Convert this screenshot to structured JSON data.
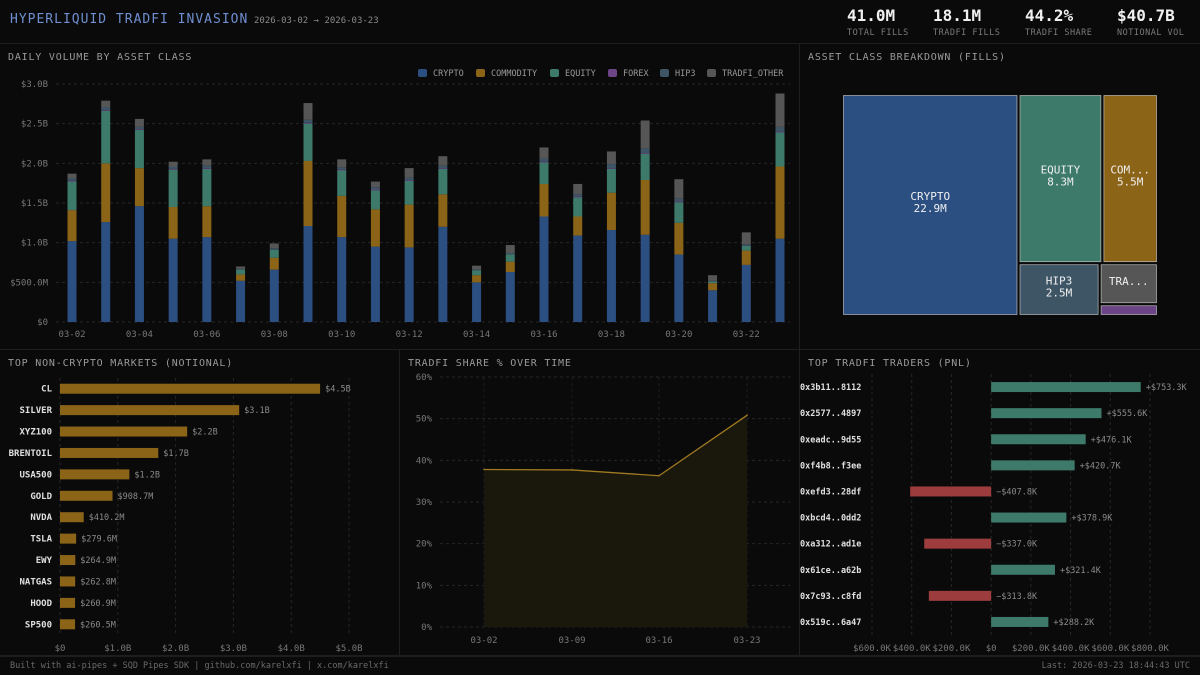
{
  "header": {
    "title": "HYPERLIQUID TRADFI INVASION",
    "date_range": "2026-03-02 → 2026-03-23",
    "stats": [
      {
        "value": "41.0M",
        "label": "TOTAL FILLS"
      },
      {
        "value": "18.1M",
        "label": "TRADFI FILLS"
      },
      {
        "value": "44.2%",
        "label": "TRADFI SHARE"
      },
      {
        "value": "$40.7B",
        "label": "NOTIONAL VOL"
      }
    ]
  },
  "panels": {
    "daily_volume": "DAILY VOLUME BY ASSET CLASS",
    "breakdown": "ASSET CLASS BREAKDOWN (FILLS)",
    "top_markets": "TOP NON-CRYPTO MARKETS (NOTIONAL)",
    "tradfi_share": "TRADFI SHARE % OVER TIME",
    "top_traders": "TOP TRADFI TRADERS (PNL)"
  },
  "footer": {
    "left": "Built with ai-pipes + SQD Pipes SDK | github.com/karelxfi | x.com/karelxfi",
    "right": "Last: 2026-03-23 18:44:43 UTC"
  },
  "colors": {
    "CRYPTO": "#2c4f82",
    "COMMODITY": "#8c6418",
    "EQUITY": "#3d7a6a",
    "FOREX": "#6b4585",
    "HIP3": "#3e5566",
    "TRADFI_OTHER": "#565656"
  },
  "chart_data": [
    {
      "id": "daily_volume",
      "type": "bar",
      "stacked": true,
      "title": "DAILY VOLUME BY ASSET CLASS",
      "categories": [
        "03-02",
        "03-03",
        "03-04",
        "03-05",
        "03-06",
        "03-07",
        "03-08",
        "03-09",
        "03-10",
        "03-11",
        "03-12",
        "03-13",
        "03-14",
        "03-15",
        "03-16",
        "03-17",
        "03-18",
        "03-19",
        "03-20",
        "03-21",
        "03-22",
        "03-23"
      ],
      "tick_labels": [
        "03-02",
        "03-04",
        "03-06",
        "03-08",
        "03-10",
        "03-12",
        "03-14",
        "03-16",
        "03-18",
        "03-20",
        "03-22"
      ],
      "y_ticks": [
        "$0",
        "$500.0M",
        "$1.0B",
        "$1.5B",
        "$2.0B",
        "$2.5B",
        "$3.0B"
      ],
      "ylim": [
        0,
        3.0
      ],
      "y_unit": "B",
      "grid": true,
      "legend_position": "top-right",
      "series": [
        {
          "name": "CRYPTO",
          "values": [
            1.02,
            1.26,
            1.46,
            1.05,
            1.07,
            0.52,
            0.66,
            1.21,
            1.07,
            0.95,
            0.94,
            1.2,
            0.5,
            0.63,
            1.33,
            1.09,
            1.16,
            1.1,
            0.85,
            0.4,
            0.72,
            1.05
          ]
        },
        {
          "name": "COMMODITY",
          "values": [
            0.39,
            0.74,
            0.48,
            0.4,
            0.39,
            0.08,
            0.15,
            0.82,
            0.52,
            0.47,
            0.54,
            0.41,
            0.09,
            0.13,
            0.41,
            0.24,
            0.47,
            0.69,
            0.4,
            0.09,
            0.18,
            0.91
          ]
        },
        {
          "name": "EQUITY",
          "values": [
            0.36,
            0.66,
            0.48,
            0.47,
            0.47,
            0.06,
            0.1,
            0.47,
            0.32,
            0.24,
            0.3,
            0.32,
            0.06,
            0.09,
            0.27,
            0.24,
            0.3,
            0.33,
            0.26,
            0.02,
            0.06,
            0.43
          ]
        },
        {
          "name": "FOREX",
          "values": [
            0.01,
            0.01,
            0.01,
            0.01,
            0.01,
            0,
            0,
            0.01,
            0.01,
            0.01,
            0.01,
            0.01,
            0,
            0,
            0.01,
            0.01,
            0.01,
            0.01,
            0.01,
            0,
            0,
            0.01
          ]
        },
        {
          "name": "HIP3",
          "values": [
            0.03,
            0.04,
            0.03,
            0.03,
            0.03,
            0.01,
            0.02,
            0.04,
            0.03,
            0.03,
            0.03,
            0.03,
            0.01,
            0.02,
            0.04,
            0.03,
            0.05,
            0.06,
            0.04,
            0.01,
            0.02,
            0.06
          ]
        },
        {
          "name": "TRADFI_OTHER",
          "values": [
            0.06,
            0.08,
            0.1,
            0.06,
            0.08,
            0.03,
            0.06,
            0.21,
            0.1,
            0.07,
            0.12,
            0.12,
            0.05,
            0.1,
            0.14,
            0.13,
            0.16,
            0.35,
            0.24,
            0.07,
            0.15,
            0.42
          ]
        }
      ]
    },
    {
      "id": "breakdown",
      "type": "treemap",
      "title": "ASSET CLASS BREAKDOWN (FILLS)",
      "unit": "M fills",
      "items": [
        {
          "name": "CRYPTO",
          "label": "CRYPTO",
          "value_label": "22.9M",
          "value": 22.9
        },
        {
          "name": "EQUITY",
          "label": "EQUITY",
          "value_label": "8.3M",
          "value": 8.3
        },
        {
          "name": "COMMODITY",
          "label": "COM...",
          "value_label": "5.5M",
          "value": 5.5
        },
        {
          "name": "HIP3",
          "label": "HIP3",
          "value_label": "2.5M",
          "value": 2.5
        },
        {
          "name": "TRADFI_OTHER",
          "label": "TRA...",
          "value_label": "",
          "value": 1.4
        },
        {
          "name": "FOREX",
          "label": "",
          "value_label": "",
          "value": 0.4
        }
      ]
    },
    {
      "id": "top_markets",
      "type": "bar",
      "orientation": "horizontal",
      "title": "TOP NON-CRYPTO MARKETS (NOTIONAL)",
      "categories": [
        "CL",
        "SILVER",
        "XYZ100",
        "BRENTOIL",
        "USA500",
        "GOLD",
        "NVDA",
        "TSLA",
        "EWY",
        "NATGAS",
        "HOOD",
        "SP500"
      ],
      "values": [
        4.5,
        3.1,
        2.2,
        1.7,
        1.2,
        0.9087,
        0.4102,
        0.2796,
        0.2649,
        0.2628,
        0.2609,
        0.2605
      ],
      "value_labels": [
        "$4.5B",
        "$3.1B",
        "$2.2B",
        "$1.7B",
        "$1.2B",
        "$908.7M",
        "$410.2M",
        "$279.6M",
        "$264.9M",
        "$262.8M",
        "$260.9M",
        "$260.5M"
      ],
      "x_ticks": [
        "$0",
        "$1.0B",
        "$2.0B",
        "$3.0B",
        "$4.0B",
        "$5.0B"
      ],
      "xlim": [
        0,
        5.0
      ],
      "unit": "B"
    },
    {
      "id": "tradfi_share",
      "type": "area",
      "title": "TRADFI SHARE % OVER TIME",
      "x": [
        "03-02",
        "03-09",
        "03-16",
        "03-23"
      ],
      "values": [
        37.8,
        37.7,
        36.3,
        50.8
      ],
      "y_ticks": [
        "0%",
        "10%",
        "20%",
        "30%",
        "40%",
        "50%",
        "60%"
      ],
      "ylim": [
        0,
        60
      ]
    },
    {
      "id": "top_traders",
      "type": "bar",
      "orientation": "horizontal",
      "title": "TOP TRADFI TRADERS (PNL)",
      "categories": [
        "0x3b11..8112",
        "0x2577..4897",
        "0xeadc..9d55",
        "0xf4b8..f3ee",
        "0xefd3..28df",
        "0xbcd4..0dd2",
        "0xa312..ad1e",
        "0x61ce..a62b",
        "0x7c93..c8fd",
        "0x519c..6a47"
      ],
      "values": [
        753.3,
        555.6,
        476.1,
        420.7,
        -407.8,
        378.9,
        -337.0,
        321.4,
        -313.8,
        288.2
      ],
      "value_labels": [
        "+$753.3K",
        "+$555.6K",
        "+$476.1K",
        "+$420.7K",
        "−$407.8K",
        "+$378.9K",
        "−$337.0K",
        "+$321.4K",
        "−$313.8K",
        "+$288.2K"
      ],
      "x_ticks": [
        "$600.0K",
        "$400.0K",
        "$200.0K",
        "$0",
        "$200.0K",
        "$400.0K",
        "$600.0K",
        "$800.0K"
      ],
      "xlim": [
        -600,
        800
      ],
      "unit": "K",
      "positive_color": "#3d7a6a",
      "negative_color": "#9c3c3c"
    }
  ]
}
